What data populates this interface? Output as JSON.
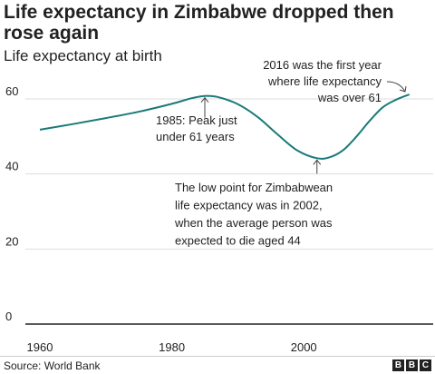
{
  "chart_data": {
    "type": "line",
    "title": "Life expectancy in Zimbabwe dropped then rose again",
    "subtitle": "Life expectancy at birth",
    "x_ticks": [
      1960,
      1980,
      2000
    ],
    "y_ticks": [
      0,
      20,
      40,
      60
    ],
    "xlim": [
      1960,
      2016
    ],
    "ylim": [
      0,
      66
    ],
    "grid": true,
    "series": [
      {
        "color": "#1a7a7a",
        "x": [
          1960,
          1965,
          1970,
          1975,
          1980,
          1983,
          1985,
          1987,
          1990,
          1993,
          1996,
          1999,
          2002,
          2004,
          2006,
          2008,
          2010,
          2012,
          2014,
          2016
        ],
        "values": [
          51.8,
          53.3,
          54.9,
          56.6,
          58.7,
          60.2,
          60.8,
          60.5,
          58.6,
          55.2,
          50.6,
          46.3,
          44.2,
          44.5,
          46.4,
          50.0,
          54.2,
          57.8,
          59.8,
          61.2
        ]
      }
    ],
    "annotations": [
      {
        "id": "peak",
        "text_lines": [
          "1985: Peak just",
          "under 61 years"
        ],
        "x": 1985,
        "y": 60.8
      },
      {
        "id": "low",
        "text_lines": [
          "The low point for Zimbabwean",
          "life expectancy was in 2002,",
          "when the average person was",
          "expected to die aged 44"
        ],
        "x": 2002,
        "y": 44.2
      },
      {
        "id": "over61",
        "text_lines": [
          "2016 was the first year",
          "where life expectancy",
          "was over 61"
        ],
        "x": 2016,
        "y": 61.2
      }
    ]
  },
  "footer": {
    "source": "Source: World Bank",
    "logo_letters": [
      "B",
      "B",
      "C"
    ]
  }
}
